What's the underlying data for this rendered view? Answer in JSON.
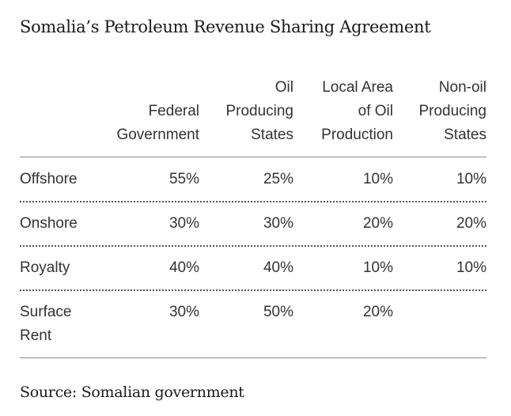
{
  "title": "Somalia’s Petroleum Revenue Sharing Agreement",
  "source": "Source: Somalian government",
  "chart_data": {
    "type": "table",
    "title": "Somalia’s Petroleum Revenue Sharing Agreement",
    "columns": [
      {
        "lines": [
          "Federal",
          "Government"
        ]
      },
      {
        "lines": [
          "Oil",
          "Producing",
          "States"
        ]
      },
      {
        "lines": [
          "Local Area",
          "of Oil",
          "Production"
        ]
      },
      {
        "lines": [
          "Non-oil",
          "Producing",
          "States"
        ]
      }
    ],
    "rows": [
      {
        "label": [
          "Offshore"
        ],
        "values": [
          "55%",
          "25%",
          "10%",
          "10%"
        ]
      },
      {
        "label": [
          "Onshore"
        ],
        "values": [
          "30%",
          "30%",
          "20%",
          "20%"
        ]
      },
      {
        "label": [
          "Royalty"
        ],
        "values": [
          "40%",
          "40%",
          "10%",
          "10%"
        ]
      },
      {
        "label": [
          "Surface",
          "Rent"
        ],
        "values": [
          "30%",
          "50%",
          "20%",
          ""
        ]
      }
    ],
    "source": "Source: Somalian government"
  }
}
